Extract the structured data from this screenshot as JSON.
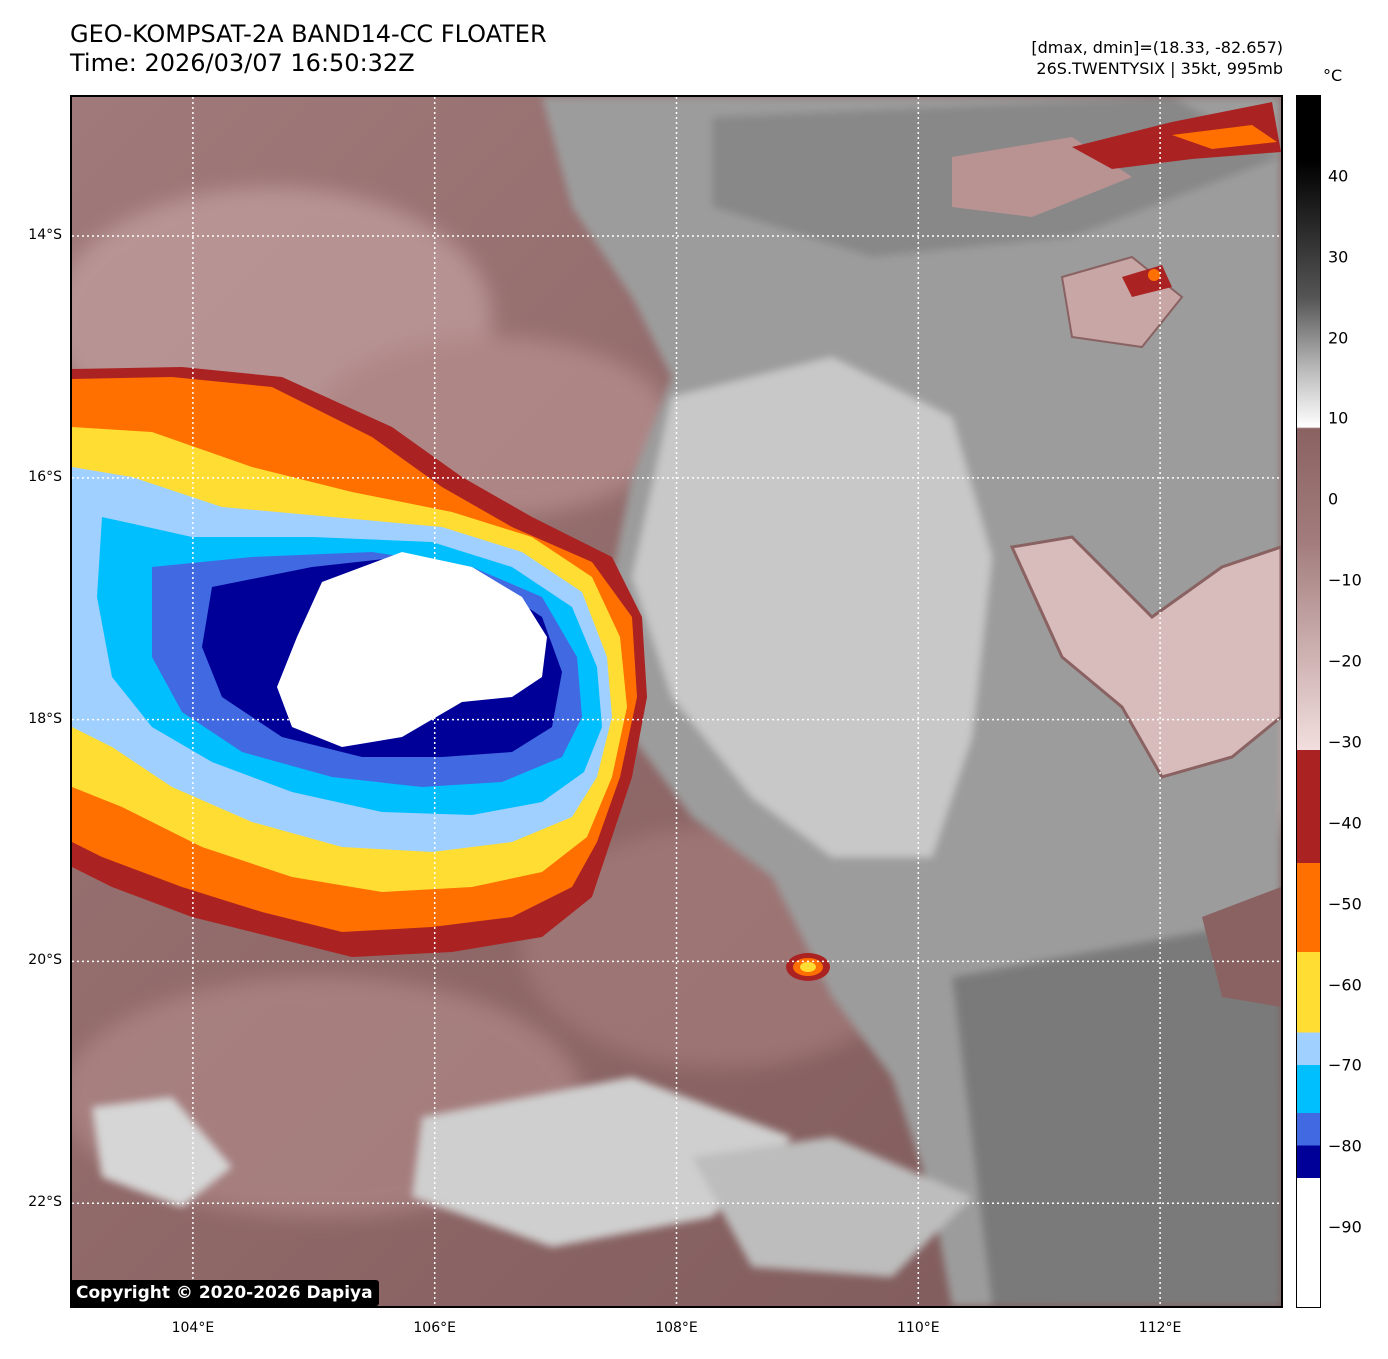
{
  "header": {
    "title_line1": "GEO-KOMPSAT-2A BAND14-CC FLOATER",
    "title_line2": "Time: 2026/03/07 16:50:32Z",
    "info_line1": "[dmax, dmin]=(18.33, -82.657)",
    "info_line2": "26S.TWENTYSIX | 35kt, 995mb"
  },
  "colorbar": {
    "unit": "°C",
    "ticks": [
      "40",
      "30",
      "20",
      "10",
      "0",
      "−10",
      "−20",
      "−30",
      "−40",
      "−50",
      "−60",
      "−70",
      "−80",
      "−90"
    ],
    "tick_values": [
      40,
      30,
      20,
      10,
      0,
      -10,
      -20,
      -30,
      -40,
      -50,
      -60,
      -70,
      -80,
      -90
    ],
    "range": [
      -100,
      50
    ],
    "bands": [
      {
        "from": -100,
        "to": -84,
        "color": "#ffffff"
      },
      {
        "from": -84,
        "to": -80,
        "color": "#000099"
      },
      {
        "from": -80,
        "to": -76,
        "color": "#4169e1"
      },
      {
        "from": -76,
        "to": -70,
        "color": "#00bfff"
      },
      {
        "from": -70,
        "to": -66,
        "color": "#a0d0ff"
      },
      {
        "from": -66,
        "to": -56,
        "color": "#ffdd33"
      },
      {
        "from": -56,
        "to": -45,
        "color": "#ff7000"
      },
      {
        "from": -45,
        "to": -31,
        "color": "#aa2222"
      }
    ]
  },
  "axes": {
    "lat_labels": [
      "14°S",
      "16°S",
      "18°S",
      "20°S",
      "22°S"
    ],
    "lat_values": [
      -14,
      -16,
      -18,
      -20,
      -22
    ],
    "lon_labels": [
      "104°E",
      "106°E",
      "108°E",
      "110°E",
      "112°E"
    ],
    "lon_values": [
      104,
      106,
      108,
      110,
      112
    ],
    "lat_range": [
      -22.85,
      -12.85
    ],
    "lon_range": [
      103,
      113
    ]
  },
  "copyright": "Copyright © 2020-2026 Dapiya",
  "colors": {
    "bg_brown": "#8a6262",
    "bg_pink": "#c9a4a4",
    "cloud_gray": "#9a9a9a",
    "cloud_light": "#d2d2d2",
    "dark_red": "#aa2222",
    "orange": "#ff7000",
    "yellow": "#ffdd33",
    "light_blue": "#a0d0ff",
    "sky_blue": "#00bfff",
    "royal_blue": "#4169e1",
    "navy": "#000099",
    "white": "#ffffff"
  }
}
